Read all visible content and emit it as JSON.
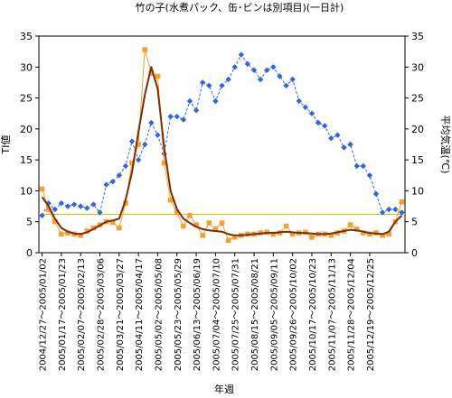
{
  "chart_data": {
    "type": "line",
    "title": "竹の子(水煮パック、缶･ビンは別項目)(一日計)",
    "xlabel": "年週",
    "ylabel_left": "TI値",
    "ylabel_right": "平均気温(℃)",
    "ylim_left": [
      0,
      35
    ],
    "ylim_right": [
      0,
      35
    ],
    "yticks": [
      0,
      5,
      10,
      15,
      20,
      25,
      30,
      35
    ],
    "grid": false,
    "colors": {
      "ti": "#f5a033",
      "ti_smooth": "#7a2d00",
      "temperature": "#3366dd",
      "reference_line": "#c8c800"
    },
    "reference_value": 6.2,
    "category_labels": [
      "2004/12/27～2005/01/02",
      "2005/01/17～2005/01/23",
      "2005/02/07～2005/02/13",
      "2005/02/28～2005/03/06",
      "2005/03/21～2005/03/27",
      "2005/04/11～2005/04/17",
      "2005/05/02～2005/05/08",
      "2005/05/23～2005/05/29",
      "2005/06/13～2005/06/19",
      "2005/07/04～2005/07/10",
      "2005/07/25～2005/07/31",
      "2005/08/15～2005/08/21",
      "2005/09/05～2005/09/11",
      "2005/09/26～2005/10/02",
      "2005/10/17～2005/10/23",
      "2005/11/07～2005/11/13",
      "2005/11/28～2005/12/04",
      "2005/12/19～2005/12/25"
    ],
    "series": [
      {
        "key": "ti",
        "values": [
          10.3,
          7.0,
          5.0,
          3.0,
          3.2,
          3.0,
          2.8,
          3.5,
          4.0,
          4.5,
          5.0,
          4.9,
          4.0,
          8.0,
          14.5,
          17.5,
          32.8,
          29.0,
          28.5,
          14.5,
          8.5,
          6.5,
          4.3,
          6.0,
          4.5,
          2.8,
          4.8,
          3.8,
          4.8,
          2.0,
          2.5,
          2.8,
          3.0,
          3.0,
          3.2,
          3.3,
          3.0,
          3.2,
          4.3,
          3.0,
          3.2,
          3.3,
          2.5,
          3.0,
          3.0,
          2.8,
          3.2,
          3.5,
          4.5,
          3.8,
          3.2,
          3.0,
          3.2,
          2.8,
          3.0,
          5.0,
          8.2
        ]
      },
      {
        "key": "ti_smooth",
        "values": [
          9.0,
          7.5,
          5.5,
          4.0,
          3.4,
          3.1,
          3.0,
          3.3,
          3.8,
          4.4,
          5.0,
          5.2,
          5.5,
          8.5,
          13.0,
          19.5,
          25.5,
          30.0,
          26.5,
          17.0,
          10.0,
          7.0,
          5.5,
          4.8,
          4.2,
          3.8,
          3.6,
          3.5,
          3.4,
          3.0,
          2.8,
          2.8,
          2.9,
          3.0,
          3.1,
          3.2,
          3.2,
          3.3,
          3.4,
          3.3,
          3.2,
          3.2,
          3.1,
          3.0,
          3.0,
          3.1,
          3.3,
          3.5,
          3.7,
          3.6,
          3.4,
          3.2,
          3.1,
          3.0,
          3.4,
          5.0,
          6.0
        ]
      },
      {
        "key": "temperature",
        "values": [
          6.0,
          8.0,
          7.0,
          8.0,
          7.5,
          7.8,
          7.5,
          7.2,
          7.8,
          6.5,
          11.0,
          11.5,
          12.5,
          14.0,
          18.0,
          15.0,
          17.5,
          21.0,
          19.0,
          16.0,
          22.0,
          22.0,
          21.5,
          24.5,
          23.0,
          27.5,
          27.0,
          24.5,
          27.0,
          28.0,
          30.0,
          32.0,
          30.5,
          29.5,
          28.0,
          29.5,
          30.0,
          28.5,
          27.0,
          28.0,
          24.5,
          23.5,
          22.5,
          21.0,
          20.5,
          18.5,
          19.0,
          17.0,
          17.5,
          14.0,
          14.0,
          12.5,
          9.5,
          6.5,
          7.0,
          7.0,
          6.5
        ]
      }
    ]
  }
}
